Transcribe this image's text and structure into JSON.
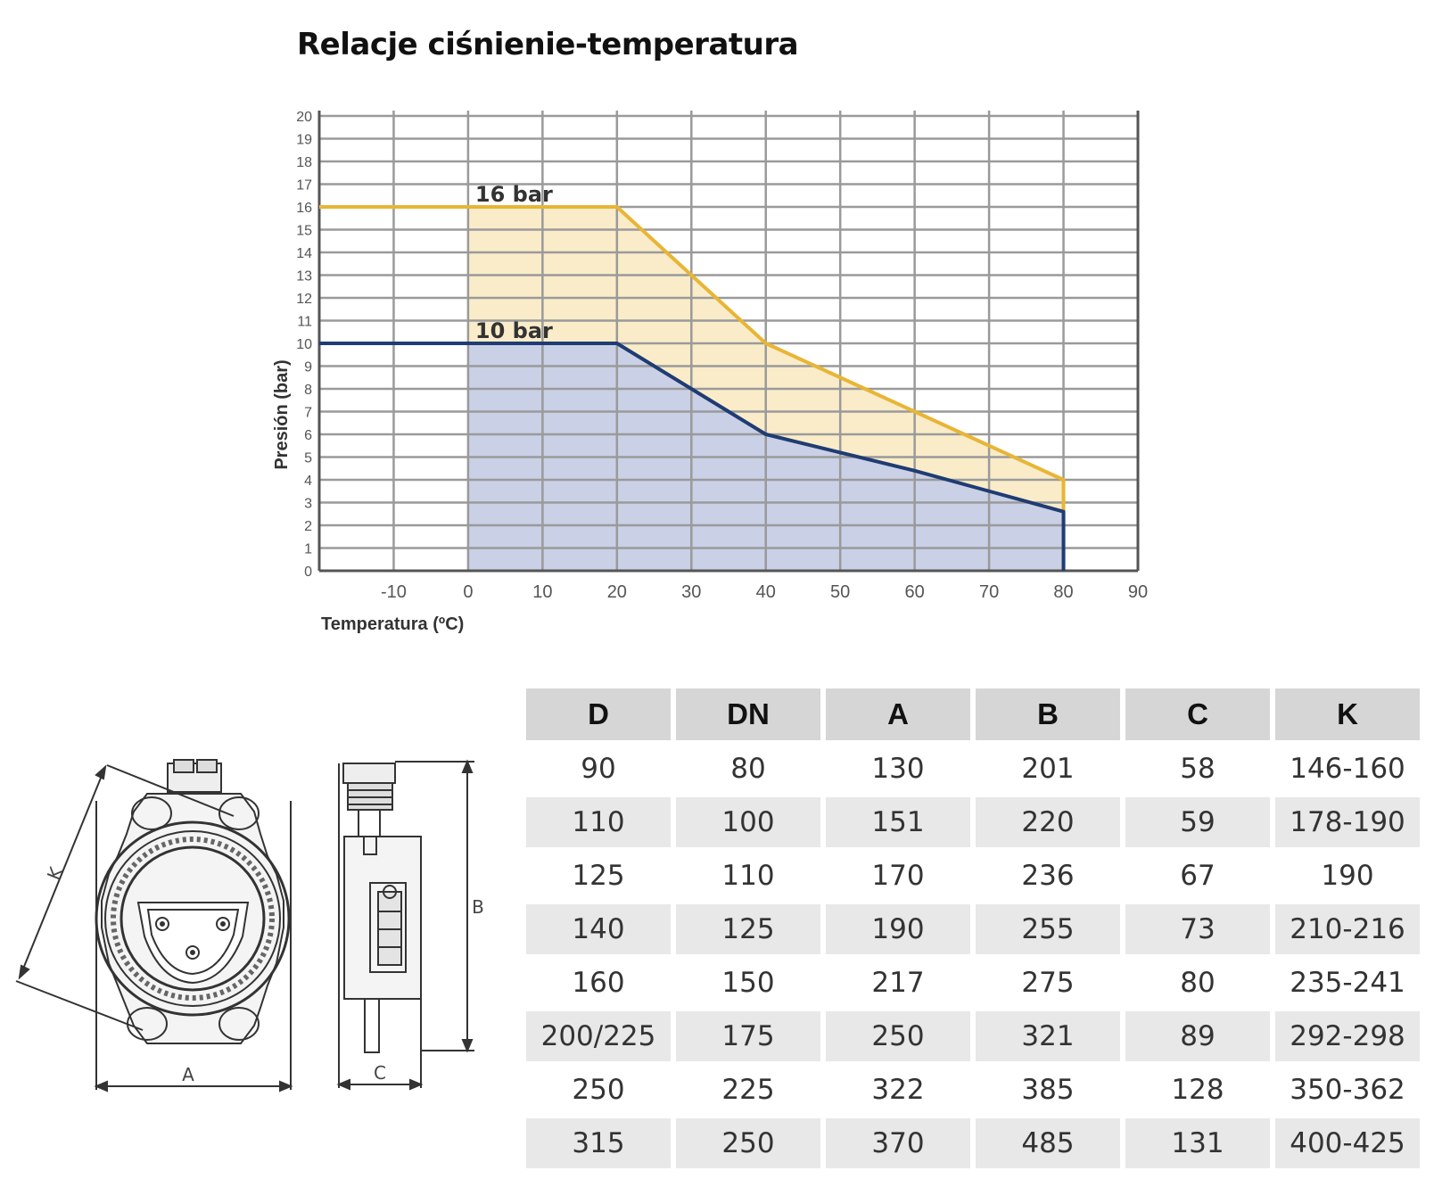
{
  "title": "Relacje ciśnienie-temperatura",
  "chart_data": {
    "type": "line",
    "ylabel": "Presión (bar)",
    "xlabel": "Temperatura (ºC)",
    "xlim": [
      -20,
      90
    ],
    "ylim": [
      0,
      20
    ],
    "x_ticks": [
      "-10",
      "0",
      "10",
      "20",
      "30",
      "40",
      "50",
      "60",
      "70",
      "80",
      "90"
    ],
    "y_ticks": [
      "0",
      "1",
      "2",
      "3",
      "4",
      "5",
      "6",
      "7",
      "8",
      "9",
      "10",
      "11",
      "12",
      "13",
      "14",
      "15",
      "16",
      "17",
      "18",
      "19",
      "20"
    ],
    "grid": true,
    "series": [
      {
        "name": "16 bar",
        "color": "#e8b535",
        "fill": "#faecc9",
        "x": [
          -20,
          0,
          20,
          30,
          40,
          50,
          60,
          70,
          80,
          80
        ],
        "y": [
          16,
          16,
          16,
          13,
          10,
          8.5,
          7,
          5.5,
          4,
          0
        ]
      },
      {
        "name": "10 bar",
        "color": "#1f3c73",
        "fill": "#cad0e6",
        "x": [
          -20,
          0,
          20,
          30,
          40,
          50,
          60,
          70,
          80,
          80
        ],
        "y": [
          10,
          10,
          10,
          8,
          6,
          5.2,
          4.4,
          3.5,
          2.6,
          0
        ]
      }
    ]
  },
  "table": {
    "headers": [
      "D",
      "DN",
      "A",
      "B",
      "C",
      "K"
    ],
    "rows": [
      [
        "90",
        "80",
        "130",
        "201",
        "58",
        "146-160"
      ],
      [
        "110",
        "100",
        "151",
        "220",
        "59",
        "178-190"
      ],
      [
        "125",
        "110",
        "170",
        "236",
        "67",
        "190"
      ],
      [
        "140",
        "125",
        "190",
        "255",
        "73",
        "210-216"
      ],
      [
        "160",
        "150",
        "217",
        "275",
        "80",
        "235-241"
      ],
      [
        "200/225",
        "175",
        "250",
        "321",
        "89",
        "292-298"
      ],
      [
        "250",
        "225",
        "322",
        "385",
        "128",
        "350-362"
      ],
      [
        "315",
        "250",
        "370",
        "485",
        "131",
        "400-425"
      ]
    ]
  },
  "drawing": {
    "label_k": "K",
    "label_a": "A",
    "label_b": "B",
    "label_c": "C"
  }
}
